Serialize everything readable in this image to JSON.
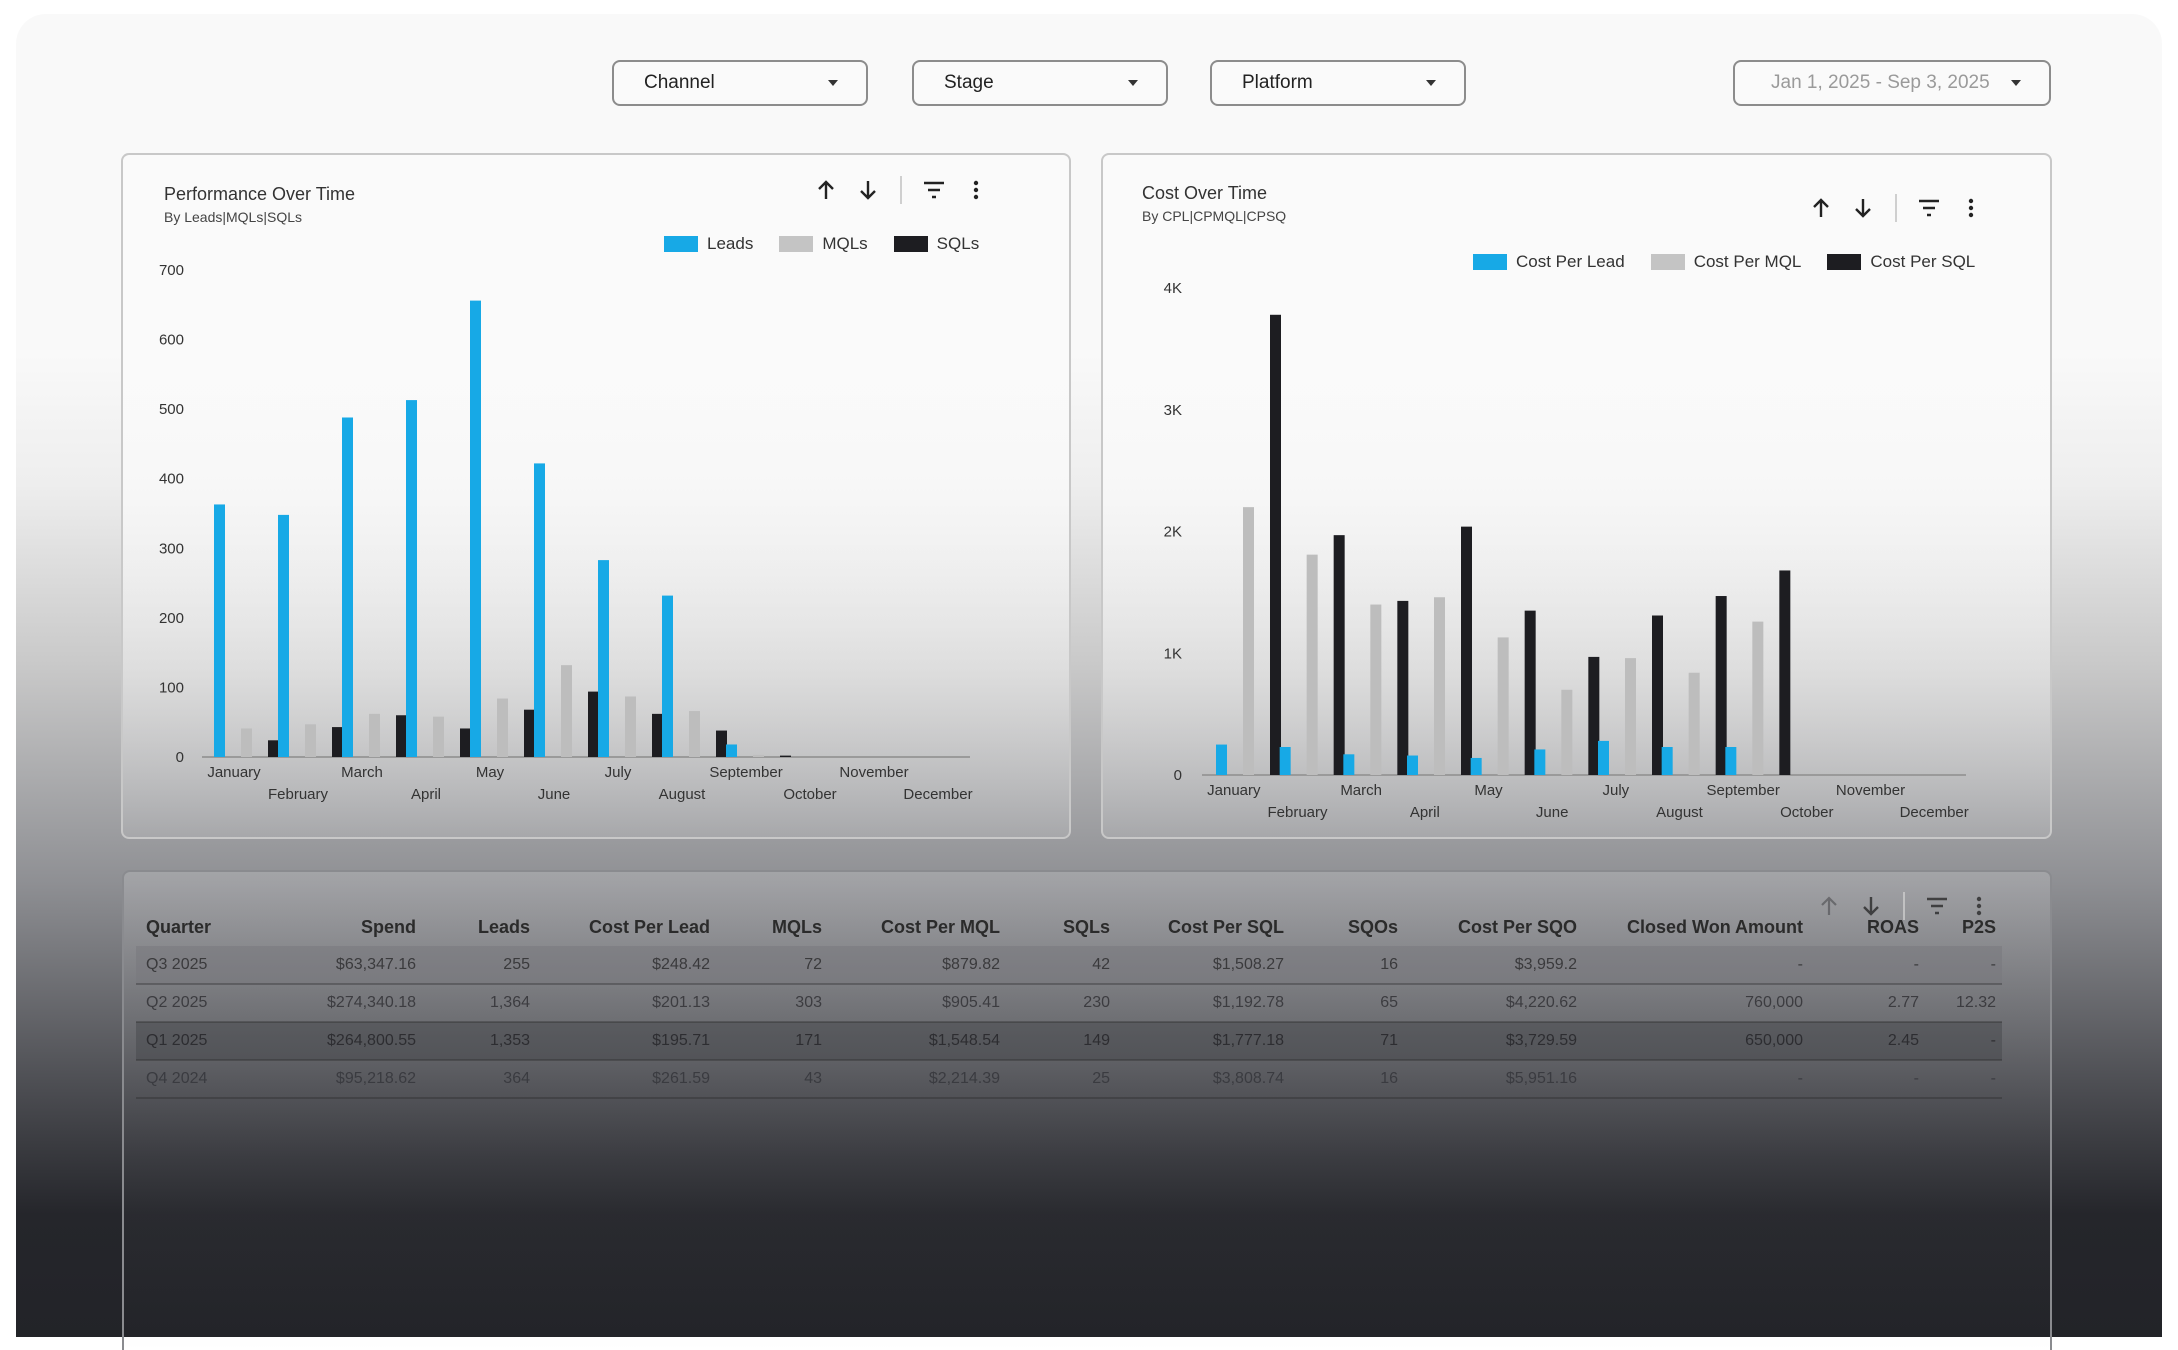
{
  "filters": {
    "channel": "Channel",
    "stage": "Stage",
    "platform": "Platform",
    "date_range": "Jan 1, 2025 - Sep 3, 2025"
  },
  "perf_chart": {
    "title": "Performance Over Time",
    "subtitle": "By Leads|MQLs|SQLs"
  },
  "cost_chart": {
    "title": "Cost Over Time",
    "subtitle": "By CPL|CPMQL|CPSQ"
  },
  "colors": {
    "blue": "#17a9e6",
    "gray": "#bdbdbd",
    "black": "#1d1d21"
  },
  "chart_data": [
    {
      "type": "bar",
      "title": "Performance Over Time",
      "subtitle": "By Leads|MQLs|SQLs",
      "categories": [
        "January",
        "February",
        "March",
        "April",
        "May",
        "June",
        "July",
        "August",
        "September",
        "October",
        "November",
        "December"
      ],
      "ylim": [
        0,
        700
      ],
      "yticks": [
        "0",
        "100",
        "200",
        "300",
        "400",
        "500",
        "600",
        "700"
      ],
      "ytick_values": [
        0,
        100,
        200,
        300,
        400,
        500,
        600,
        700
      ],
      "legend": "top-right",
      "series": [
        {
          "name": "Leads",
          "color": "#17a9e6",
          "values": [
            363,
            348,
            488,
            513,
            656,
            422,
            283,
            232,
            18,
            0,
            0,
            0
          ]
        },
        {
          "name": "MQLs",
          "color": "#bdbdbd",
          "values": [
            41,
            47,
            62,
            58,
            84,
            132,
            87,
            66,
            3,
            0,
            0,
            0
          ]
        },
        {
          "name": "SQLs",
          "color": "#1d1d21",
          "values": [
            24,
            43,
            60,
            41,
            68,
            94,
            62,
            38,
            2,
            0,
            0,
            0
          ]
        }
      ]
    },
    {
      "type": "bar",
      "title": "Cost Over Time",
      "subtitle": "By CPL|CPMQL|CPSQ",
      "categories": [
        "January",
        "February",
        "March",
        "April",
        "May",
        "June",
        "July",
        "August",
        "September",
        "October",
        "November",
        "December"
      ],
      "ylim": [
        0,
        4000
      ],
      "yticks": [
        "0",
        "1K",
        "2K",
        "3K",
        "4K"
      ],
      "ytick_values": [
        0,
        1000,
        2000,
        3000,
        4000
      ],
      "legend": "top-right",
      "series": [
        {
          "name": "Cost Per Lead",
          "color": "#17a9e6",
          "values": [
            250,
            230,
            170,
            160,
            140,
            210,
            280,
            230,
            230,
            0,
            0,
            0
          ]
        },
        {
          "name": "Cost Per MQL",
          "color": "#bdbdbd",
          "values": [
            2200,
            1810,
            1400,
            1460,
            1130,
            700,
            960,
            840,
            1260,
            0,
            0,
            0
          ]
        },
        {
          "name": "Cost Per SQL",
          "color": "#1d1d21",
          "values": [
            3780,
            1970,
            1430,
            2040,
            1350,
            970,
            1310,
            1470,
            1680,
            0,
            0,
            0
          ]
        }
      ]
    }
  ],
  "table": {
    "columns": [
      "Quarter",
      "Spend",
      "Leads",
      "Cost Per Lead",
      "MQLs",
      "Cost Per MQL",
      "SQLs",
      "Cost Per SQL",
      "SQOs",
      "Cost Per SQO",
      "Closed Won Amount",
      "ROAS",
      "P2S"
    ],
    "rows": [
      [
        "Q3 2025",
        "$63,347.16",
        "255",
        "$248.42",
        "72",
        "$879.82",
        "42",
        "$1,508.27",
        "16",
        "$3,959.2",
        "-",
        "-",
        "-"
      ],
      [
        "Q2 2025",
        "$274,340.18",
        "1,364",
        "$201.13",
        "303",
        "$905.41",
        "230",
        "$1,192.78",
        "65",
        "$4,220.62",
        "760,000",
        "2.77",
        "12.32"
      ],
      [
        "Q1 2025",
        "$264,800.55",
        "1,353",
        "$195.71",
        "171",
        "$1,548.54",
        "149",
        "$1,777.18",
        "71",
        "$3,729.59",
        "650,000",
        "2.45",
        "-"
      ],
      [
        "Q4 2024",
        "$95,218.62",
        "364",
        "$261.59",
        "43",
        "$2,214.39",
        "25",
        "$3,808.74",
        "16",
        "$5,951.16",
        "-",
        "-",
        "-"
      ]
    ]
  }
}
